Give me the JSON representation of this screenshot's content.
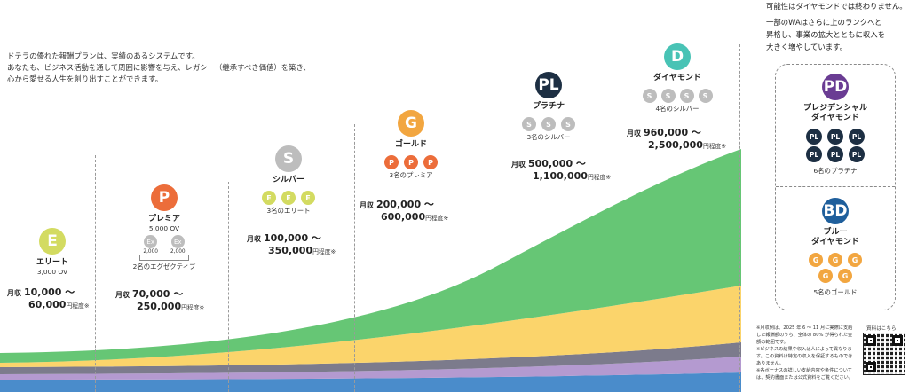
{
  "intro": {
    "lines": [
      "ドテラの優れた報酬プランは、実績のあるシステムです。",
      "あなたも、ビジネス活動を通して周囲に影響を与え、レガシー（継承すべき価値）を築き、",
      "心から愛せる人生を創り出すことができます。"
    ]
  },
  "colors": {
    "elite": "#d3db61",
    "premier": "#ec6d3a",
    "silver": "#bdbdbd",
    "gold": "#f2a640",
    "platinum": "#1d2f43",
    "diamond": "#48c3b5",
    "presidential": "#6a3c93",
    "blue": "#1f5f9c",
    "band_green": "#66c675",
    "band_yellow": "#fbd46b",
    "band_gray": "#7c7b8c",
    "band_purple": "#b49ad0",
    "band_blue": "#4a8ccb"
  },
  "income_label": "月収",
  "income_suffix": "円程度",
  "income_note": "※",
  "ranks": {
    "elite": {
      "badge": "E",
      "name": "エリート",
      "req": "3,000 OV",
      "income_from": "10,000 ～",
      "income_to": "60,000"
    },
    "premier": {
      "badge": "P",
      "name": "プレミア",
      "req": "5,000 OV",
      "ex_badge": "Ex",
      "ex_values": [
        "2,000",
        "2,000"
      ],
      "req2": "2名のエグゼクティブ",
      "income_from": "70,000 ～",
      "income_to": "250,000"
    },
    "silver": {
      "badge": "S",
      "name": "シルバー",
      "mini": "E",
      "req": "3名のエリート",
      "income_from": "100,000 ～",
      "income_to": "350,000"
    },
    "gold": {
      "badge": "G",
      "name": "ゴールド",
      "mini": "P",
      "req": "3名のプレミア",
      "income_from": "200,000 ～",
      "income_to": "600,000"
    },
    "platinum": {
      "badge": "PL",
      "name": "プラチナ",
      "mini": "S",
      "req": "3名のシルバー",
      "income_from": "500,000 ～",
      "income_to": "1,100,000"
    },
    "diamond": {
      "badge": "D",
      "name": "ダイヤモンド",
      "mini": "S",
      "req": "4名のシルバー",
      "income_from": "960,000 ～",
      "income_to": "2,500,000"
    }
  },
  "top_text": [
    "可能性はダイヤモンドでは終わりません。",
    "一部のWAはさらに上のランクへと",
    "昇格し、事業の拡大とともに収入を",
    "大きく増やしています。"
  ],
  "presidential": {
    "badge": "PD",
    "name_1": "プレジデンシャル",
    "name_2": "ダイヤモンド",
    "mini": "PL",
    "req": "6名のプラチナ"
  },
  "blue_diamond": {
    "badge": "BD",
    "name_1": "ブルー",
    "name_2": "ダイヤモンド",
    "mini": "G",
    "req": "5名のゴールド"
  },
  "notes": [
    "※月収例は、2025 年 6 ～ 11 月に実際に支給した報酬額のうち、全体の 80% が得られた金額の範囲です。",
    "※ビジネスの結果や収入は人によって異なります。この資料は特定の収入を保証するものではありません。",
    "※各ボーナスの詳しい支給内容や条件については、契約書面または公式資料をご覧ください。"
  ],
  "qr_label": "資料はこちら"
}
